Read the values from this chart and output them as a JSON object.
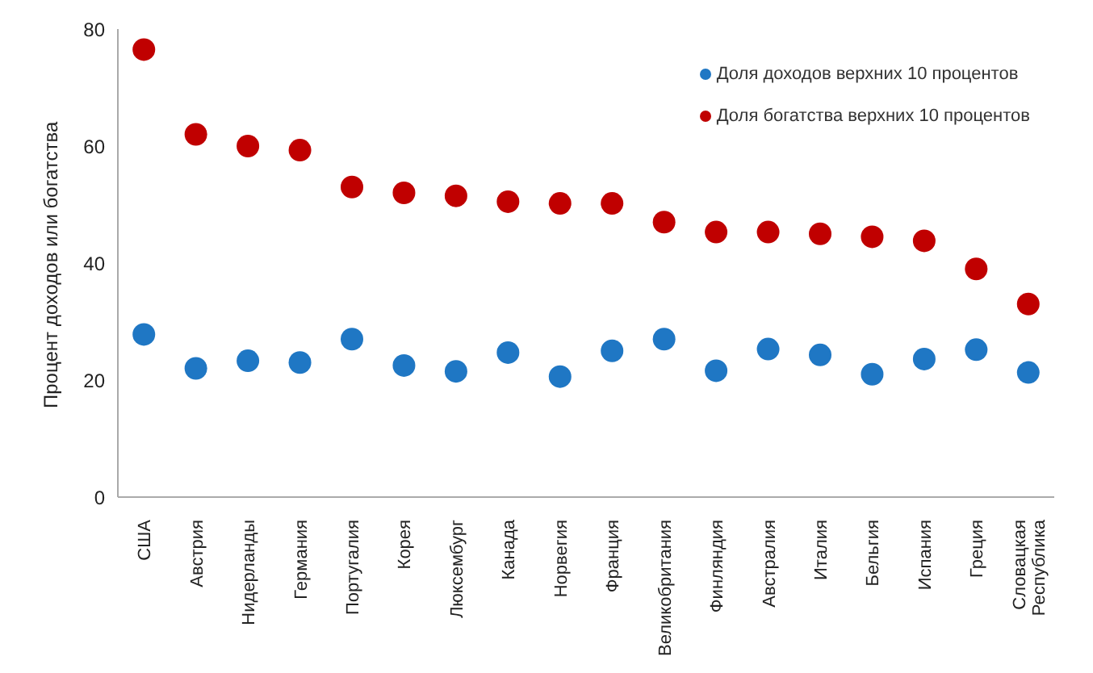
{
  "chart_data": {
    "type": "scatter",
    "ylabel": "Процент доходов или богатства",
    "categories": [
      "США",
      "Австрия",
      "Нидерланды",
      "Германия",
      "Португалия",
      "Корея",
      "Люксембург",
      "Канада",
      "Норвегия",
      "Франция",
      "Великобритания",
      "Финляндия",
      "Австралия",
      "Италия",
      "Бельгия",
      "Испания",
      "Греция",
      "Словацкая Республика"
    ],
    "series": [
      {
        "name": "Доля доходов верхних 10 процентов",
        "color": "#1f77c4",
        "values": [
          27.8,
          22,
          23.3,
          23,
          27,
          22.5,
          21.5,
          24.7,
          20.6,
          25,
          27,
          21.6,
          25.3,
          24.3,
          21,
          23.6,
          25.2,
          21.3
        ]
      },
      {
        "name": "Доля богатства верхних 10 процентов",
        "color": "#c00000",
        "values": [
          76.5,
          62,
          60,
          59.3,
          53,
          52,
          51.5,
          50.5,
          50.2,
          50.2,
          47,
          45.3,
          45.3,
          45,
          44.5,
          43.8,
          39,
          33
        ]
      }
    ],
    "ylim": [
      0,
      80
    ],
    "yticks": [
      0,
      20,
      40,
      60,
      80
    ],
    "grid": false,
    "legend": "top right",
    "marker": "circle"
  }
}
